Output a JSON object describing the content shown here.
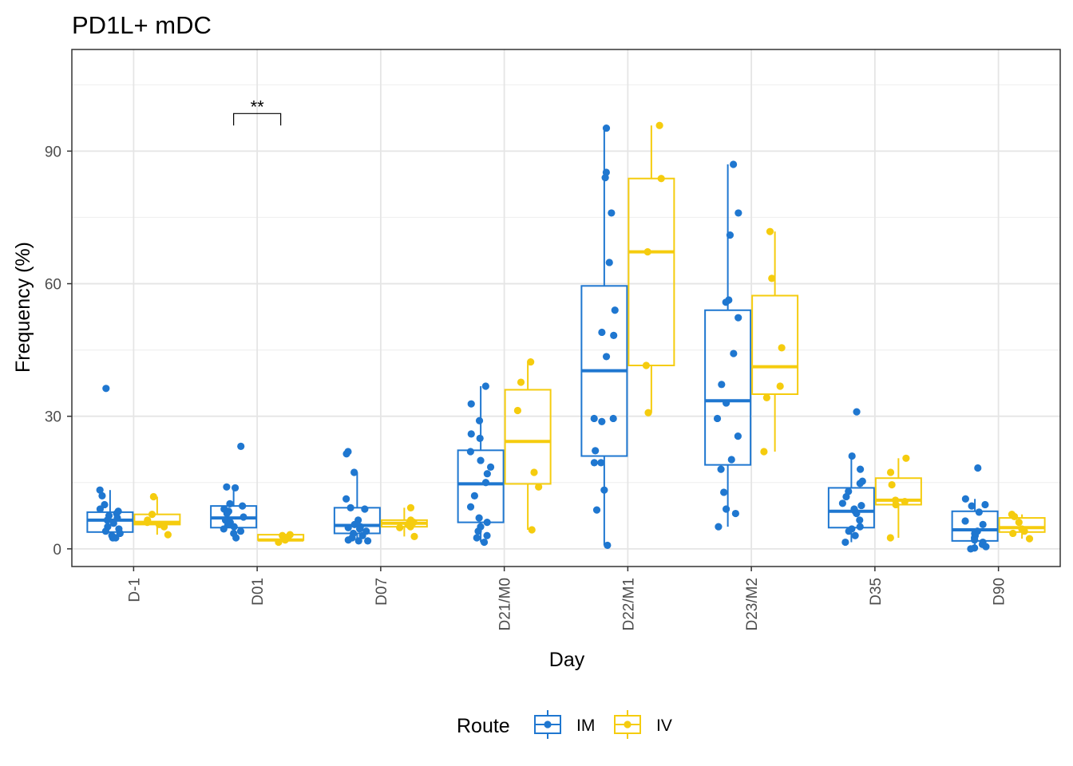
{
  "chart_data": {
    "type": "box",
    "title": "PD1L+ mDC",
    "xlabel": "Day",
    "ylabel": "Frequency (%)",
    "ylim": [
      -4,
      113
    ],
    "yticks": [
      0,
      30,
      60,
      90
    ],
    "categories": [
      "D-1",
      "D01",
      "D07",
      "D21/M0",
      "D22/M1",
      "D23/M2",
      "D35",
      "D90"
    ],
    "grid": true,
    "legend": {
      "title": "Route",
      "position": "bottom"
    },
    "series": [
      {
        "name": "IM",
        "color": "#1f77d0",
        "boxes": [
          {
            "min": 2.5,
            "q1": 3.8,
            "median": 6.5,
            "q3": 8.3,
            "max": 13.3
          },
          {
            "min": 2.5,
            "q1": 4.8,
            "median": 7.0,
            "q3": 9.7,
            "max": 13.8
          },
          {
            "min": 1.8,
            "q1": 3.5,
            "median": 5.3,
            "q3": 9.3,
            "max": 17.3
          },
          {
            "min": 1.5,
            "q1": 6.0,
            "median": 14.7,
            "q3": 22.3,
            "max": 36.8
          },
          {
            "min": 0.8,
            "q1": 21.0,
            "median": 40.3,
            "q3": 59.5,
            "max": 95.2
          },
          {
            "min": 5.0,
            "q1": 19.0,
            "median": 33.5,
            "q3": 54.0,
            "max": 87.0
          },
          {
            "min": 1.5,
            "q1": 4.8,
            "median": 8.5,
            "q3": 13.8,
            "max": 20.8
          },
          {
            "min": 0.0,
            "q1": 1.8,
            "median": 4.3,
            "q3": 8.5,
            "max": 11.3
          }
        ],
        "points": [
          [
            36.3,
            13.3,
            12.0,
            10.0,
            9.0,
            8.5,
            8.0,
            7.5,
            7.0,
            6.5,
            5.8,
            5.0,
            4.5,
            4.0,
            3.5,
            3.0,
            2.5,
            2.5
          ],
          [
            23.2,
            14.0,
            13.8,
            10.2,
            9.7,
            9.0,
            8.5,
            8.0,
            7.2,
            6.5,
            6.0,
            5.5,
            5.0,
            4.5,
            4.0,
            3.5,
            2.5
          ],
          [
            22.0,
            21.5,
            17.3,
            11.3,
            9.3,
            9.0,
            6.5,
            5.5,
            5.0,
            4.8,
            4.5,
            4.0,
            3.5,
            3.0,
            2.5,
            2.0,
            1.8,
            1.8
          ],
          [
            36.8,
            32.8,
            29.0,
            26.0,
            25.0,
            22.0,
            20.0,
            18.5,
            17.0,
            15.0,
            12.0,
            9.5,
            7.0,
            6.0,
            5.0,
            4.0,
            3.0,
            2.5,
            1.5
          ],
          [
            95.2,
            85.2,
            84.0,
            76.0,
            64.8,
            54.0,
            49.0,
            48.3,
            43.5,
            29.5,
            29.5,
            28.8,
            22.2,
            19.5,
            19.5,
            13.3,
            8.8,
            0.8
          ],
          [
            87.0,
            76.0,
            71.0,
            56.3,
            55.8,
            52.3,
            44.2,
            37.2,
            33.0,
            29.5,
            25.5,
            20.2,
            18.0,
            12.8,
            9.0,
            8.0,
            5.0
          ],
          [
            31.0,
            21.0,
            18.0,
            15.3,
            14.8,
            13.0,
            11.8,
            10.3,
            9.8,
            9.0,
            8.5,
            8.0,
            6.5,
            5.0,
            4.5,
            4.0,
            3.0,
            1.5
          ],
          [
            18.3,
            11.3,
            10.0,
            9.7,
            8.3,
            6.3,
            5.5,
            4.0,
            3.5,
            3.0,
            2.5,
            2.0,
            1.5,
            1.0,
            0.5,
            0.2,
            0.0
          ]
        ]
      },
      {
        "name": "IV",
        "color": "#f5cc0e",
        "boxes": [
          {
            "min": 3.2,
            "q1": 5.5,
            "median": 6.0,
            "q3": 7.8,
            "max": 11.8
          },
          {
            "min": 1.5,
            "q1": 2.0,
            "median": 2.0,
            "q3": 3.2,
            "max": 3.2
          },
          {
            "min": 2.8,
            "q1": 5.0,
            "median": 5.8,
            "q3": 6.5,
            "max": 9.3
          },
          {
            "min": 4.3,
            "q1": 14.7,
            "median": 24.3,
            "q3": 36.0,
            "max": 42.3
          },
          {
            "min": 30.8,
            "q1": 41.5,
            "median": 67.2,
            "q3": 83.8,
            "max": 95.8
          },
          {
            "min": 22.0,
            "q1": 35.0,
            "median": 41.2,
            "q3": 57.3,
            "max": 71.8
          },
          {
            "min": 2.5,
            "q1": 10.0,
            "median": 11.0,
            "q3": 16.0,
            "max": 20.5
          },
          {
            "min": 2.3,
            "q1": 3.8,
            "median": 4.8,
            "q3": 7.0,
            "max": 7.8
          }
        ],
        "points": [
          [
            11.8,
            7.8,
            6.5,
            6.0,
            5.5,
            5.0,
            3.2
          ],
          [
            3.2,
            3.0,
            2.5,
            2.0,
            1.5
          ],
          [
            9.3,
            6.5,
            6.0,
            5.5,
            5.0,
            4.8,
            2.8
          ],
          [
            42.3,
            37.7,
            31.3,
            17.3,
            14.0,
            4.3
          ],
          [
            95.8,
            83.8,
            67.2,
            41.5,
            30.8
          ],
          [
            71.8,
            61.2,
            45.5,
            36.8,
            34.2,
            22.0
          ],
          [
            20.5,
            17.3,
            14.5,
            11.0,
            10.7,
            10.0,
            2.5
          ],
          [
            7.8,
            7.3,
            6.0,
            4.5,
            4.0,
            3.5,
            2.3
          ]
        ]
      }
    ],
    "annotations": [
      {
        "text": "**",
        "category": "D01",
        "y": 98.5
      }
    ]
  }
}
